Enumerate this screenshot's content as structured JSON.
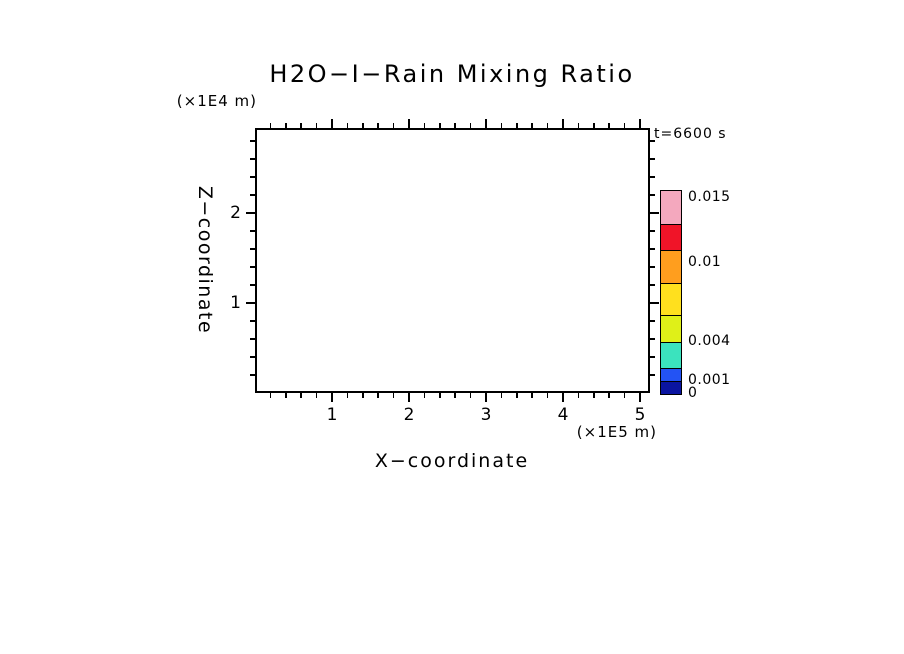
{
  "title": "H2O−I−Rain Mixing Ratio",
  "time_label": "t=6600 s",
  "x_axis": {
    "label": "X−coordinate",
    "units": "(×1E5 m)",
    "major_ticks": [
      {
        "value": 1,
        "label": "1"
      },
      {
        "value": 2,
        "label": "2"
      },
      {
        "value": 3,
        "label": "3"
      },
      {
        "value": 4,
        "label": "4"
      },
      {
        "value": 5,
        "label": "5"
      }
    ],
    "minor_step": 0.2,
    "range": [
      0,
      5.13
    ]
  },
  "z_axis": {
    "label": "Z−coordinate",
    "units": "(×1E4 m)",
    "major_ticks": [
      {
        "value": 1,
        "label": "1"
      },
      {
        "value": 2,
        "label": "2"
      }
    ],
    "minor_step": 0.2,
    "range": [
      0,
      2.95
    ]
  },
  "colorbar": {
    "max": 0.0155,
    "segments": [
      {
        "from": 0,
        "to": 0.001,
        "color": "#0A14A0"
      },
      {
        "from": 0.001,
        "to": 0.002,
        "color": "#2353F4"
      },
      {
        "from": 0.002,
        "to": 0.004,
        "color": "#3BE3BE"
      },
      {
        "from": 0.004,
        "to": 0.006,
        "color": "#DFF018"
      },
      {
        "from": 0.006,
        "to": 0.0085,
        "color": "#FFE01E"
      },
      {
        "from": 0.0085,
        "to": 0.011,
        "color": "#FF9E1E"
      },
      {
        "from": 0.011,
        "to": 0.013,
        "color": "#F01428"
      },
      {
        "from": 0.013,
        "to": 0.0155,
        "color": "#F4A8BE"
      }
    ],
    "tick_labels": [
      {
        "value": 0.015,
        "label": "0.015"
      },
      {
        "value": 0.01,
        "label": "0.01"
      },
      {
        "value": 0.004,
        "label": "0.004"
      },
      {
        "value": 0.001,
        "label": "0.001"
      },
      {
        "value": 0,
        "label": "0"
      }
    ]
  },
  "chart_data": {
    "type": "contour",
    "title": "H2O−I−Rain Mixing Ratio",
    "xlabel": "X−coordinate (×1E5 m)",
    "ylabel": "Z−coordinate (×1E4 m)",
    "xlim": [
      0,
      5.13
    ],
    "ylim": [
      0,
      2.95
    ],
    "x_ticks": [
      1,
      2,
      3,
      4,
      5
    ],
    "y_ticks": [
      1,
      2
    ],
    "time_annotation": "t=6600 s",
    "values": [],
    "colorbar_levels": [
      0,
      0.001,
      0.002,
      0.004,
      0.006,
      0.0085,
      0.011,
      0.013,
      0.0155
    ],
    "colorbar_labeled_ticks": [
      0,
      0.001,
      0.004,
      0.01,
      0.015
    ],
    "colorbar_colors": [
      "#0A14A0",
      "#2353F4",
      "#3BE3BE",
      "#DFF018",
      "#FFE01E",
      "#FF9E1E",
      "#F01428",
      "#F4A8BE"
    ],
    "legend_position": "right",
    "grid": false
  }
}
